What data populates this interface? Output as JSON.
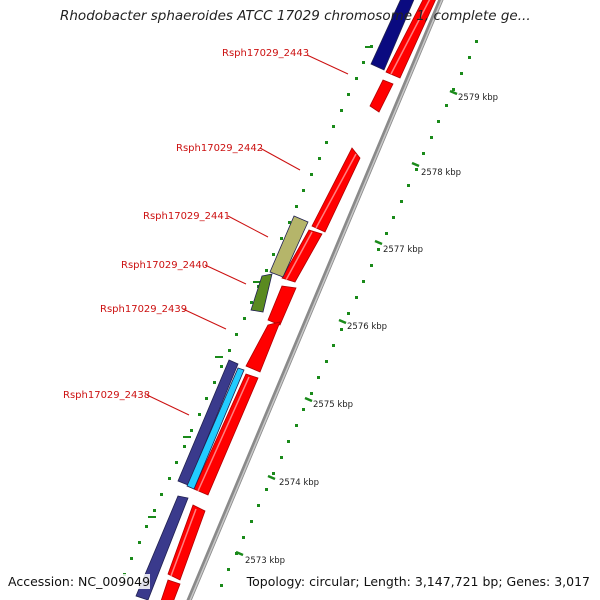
{
  "title": "Rhodobacter sphaeroides ATCC 17029 chromosome 1, complete ge...",
  "footer": {
    "accession": "Accession: NC_009049",
    "topology": "Topology: circular; Length: 3,147,721 bp; Genes: 3,017"
  },
  "gene_labels": [
    "Rsph17029_2443",
    "Rsph17029_2442",
    "Rsph17029_2441",
    "Rsph17029_2440",
    "Rsph17029_2439",
    "Rsph17029_2438"
  ],
  "kbp_labels": [
    "2579 kbp",
    "2578 kbp",
    "2577 kbp",
    "2576 kbp",
    "2575 kbp",
    "2574 kbp",
    "2573 kbp"
  ],
  "colors": {
    "forward_gene": "#ff0000",
    "reverse_gene_dark": "#3a3a8c",
    "reverse_gene_navy": "#0a0a80",
    "cyan_feature": "#22ccff",
    "olive_feature": "#b5b56a",
    "green_feature": "#5a8a20",
    "backbone": "#8a8a8a",
    "ticks": "#1a8a1a",
    "label_text": "#cc1111"
  }
}
